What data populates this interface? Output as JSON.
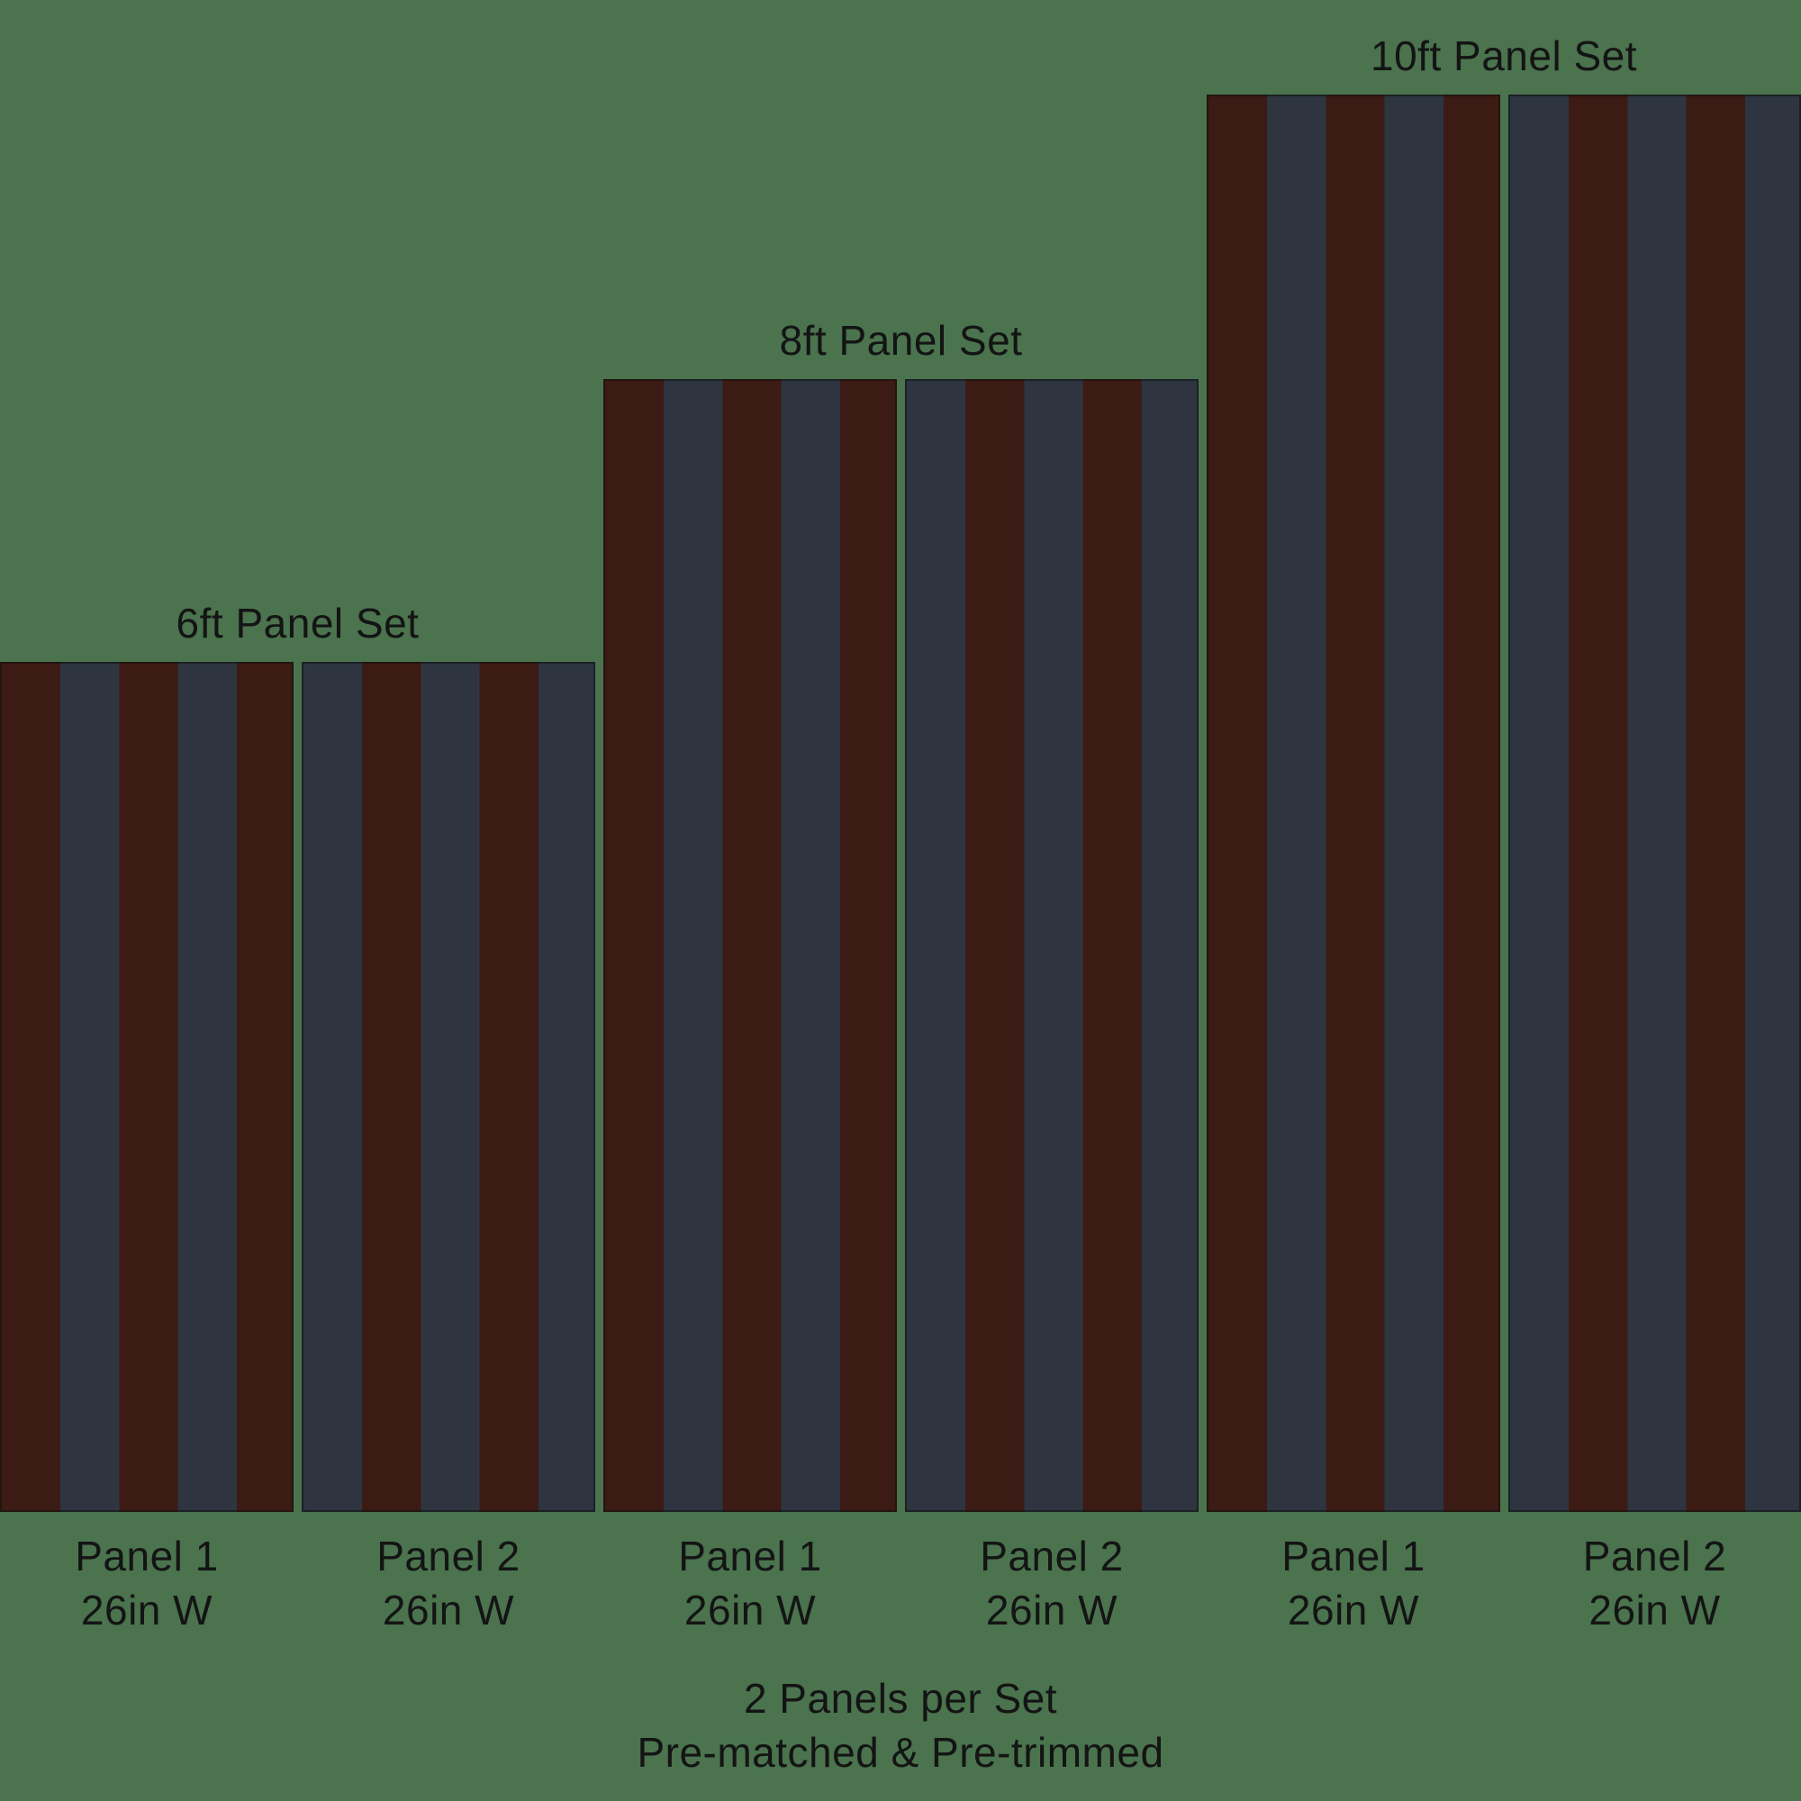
{
  "colors": {
    "background": "#4A734E",
    "stripe_maroon": "#3C1B15",
    "stripe_navy": "#2E3541",
    "text": "#141414",
    "panel_border": "rgba(12,16,13,0.55)"
  },
  "sets": [
    {
      "id": "6ft",
      "title": "6ft Panel Set",
      "panels": [
        {
          "label": "Panel 1",
          "width_label": "26in W"
        },
        {
          "label": "Panel 2",
          "width_label": "26in W"
        }
      ]
    },
    {
      "id": "8ft",
      "title": "8ft Panel Set",
      "panels": [
        {
          "label": "Panel 1",
          "width_label": "26in W"
        },
        {
          "label": "Panel 2",
          "width_label": "26in W"
        }
      ]
    },
    {
      "id": "10ft",
      "title": "10ft Panel Set",
      "panels": [
        {
          "label": "Panel 1",
          "width_label": "26in W"
        },
        {
          "label": "Panel 2",
          "width_label": "26in W"
        }
      ]
    }
  ],
  "footer": {
    "line1": "2 Panels per Set",
    "line2": "Pre-matched & Pre-trimmed"
  }
}
